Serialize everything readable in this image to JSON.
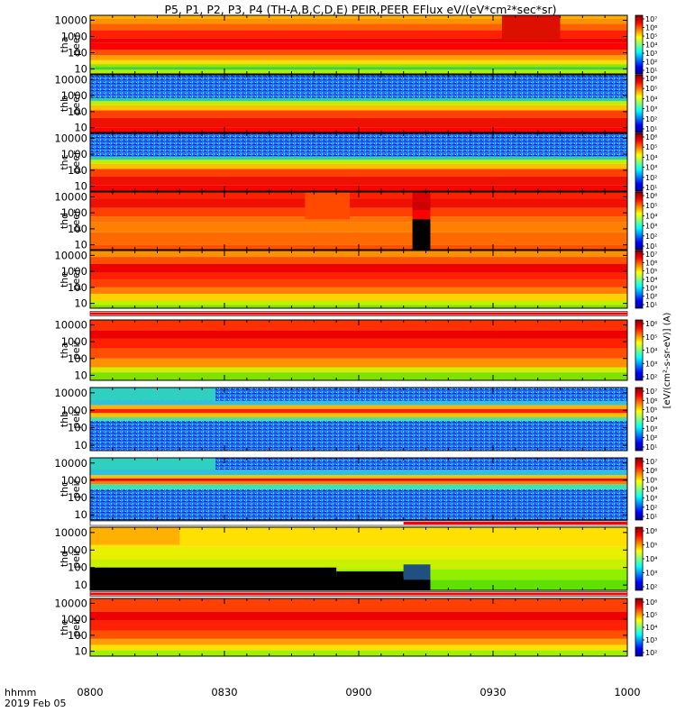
{
  "title": "P5, P1, P2, P3, P4 (TH-A,B,C,D,E) PEIR,PEER EFlux eV/(eV*cm²*sec*sr)",
  "colorbar_label": "[eV/(cm²-s-sr-eV)] (A)",
  "colors": {
    "frame": "#000000",
    "ribbon_red": "#ff0000",
    "ribbon_white": "#ffffff",
    "fill_black": "#000000"
  },
  "chart_data": {
    "type": "heatmap",
    "x_axis": {
      "ticks": [
        "0800",
        "0830",
        "0900",
        "0930",
        "1000"
      ],
      "prefix_lines": [
        "hhmm",
        "2019 Feb 05"
      ],
      "range_minutes": [
        0,
        120
      ]
    },
    "y_ticks": [
      "10",
      "100",
      "1000",
      "10000"
    ],
    "y_range": [
      5,
      20000
    ],
    "y_scale": "log",
    "panels": [
      {
        "id": "tha-peer",
        "label": [
          "tha",
          "peer"
        ],
        "cbar": [
          "10⁷",
          "10⁶",
          "10⁵",
          "10⁴",
          "10³",
          "10²",
          "10¹"
        ],
        "bands": [
          [
            5,
            "#60e000"
          ],
          [
            9,
            "#b0f000"
          ],
          [
            13,
            "#40d040"
          ],
          [
            20,
            "#90e800"
          ],
          [
            35,
            "#ffe000"
          ],
          [
            70,
            "#ffa000"
          ],
          [
            150,
            "#ff5000"
          ],
          [
            400,
            "#ff0000"
          ],
          [
            800,
            "#ee0000"
          ],
          [
            2500,
            "#ff2000"
          ],
          [
            6000,
            "#ff6000"
          ],
          [
            12000,
            "#ff9000"
          ],
          [
            20000,
            "#ffb000"
          ]
        ],
        "events": [
          {
            "x0": 92,
            "x1": 105,
            "y0": 600,
            "y1": 20000,
            "color": "#dd1000"
          }
        ]
      },
      {
        "id": "thb-peer",
        "label": [
          "thb",
          "peer"
        ],
        "cbar": [
          "10⁶",
          "10⁵",
          "10⁴",
          "10³",
          "10²",
          "10¹"
        ],
        "bands": [
          [
            5,
            "#ff3000"
          ],
          [
            10,
            "#ff0000"
          ],
          [
            40,
            "#ee1000"
          ],
          [
            120,
            "#ff4000"
          ],
          [
            250,
            "#ffc000"
          ],
          [
            450,
            "#c0f000"
          ],
          [
            700,
            "#30d0a0"
          ],
          [
            1200,
            "#2080ff",
            "noise"
          ],
          [
            20000,
            "#1060e0",
            "noise"
          ]
        ],
        "events": []
      },
      {
        "id": "thc-peer",
        "label": [
          "thc",
          "peer"
        ],
        "cbar": [
          "10⁶",
          "10⁵",
          "10⁴",
          "10³",
          "10²",
          "10¹"
        ],
        "bands": [
          [
            5,
            "#ff3000"
          ],
          [
            12,
            "#ff0000"
          ],
          [
            40,
            "#ee1000"
          ],
          [
            120,
            "#ff4000"
          ],
          [
            250,
            "#ffc000"
          ],
          [
            450,
            "#c0f000"
          ],
          [
            700,
            "#30d0a0"
          ],
          [
            1200,
            "#2080ff",
            "noise"
          ],
          [
            20000,
            "#1050e0",
            "noise"
          ]
        ],
        "events": []
      },
      {
        "id": "thd-peer",
        "label": [
          "thd",
          "peer"
        ],
        "cbar": [
          "10⁶",
          "10⁵",
          "10⁴",
          "10³",
          "10²",
          "10¹"
        ],
        "bands": [
          [
            5,
            "#ff8000"
          ],
          [
            10,
            "#ff5000"
          ],
          [
            60,
            "#ff6a00"
          ],
          [
            250,
            "#ff8000"
          ],
          [
            600,
            "#ff7000"
          ],
          [
            2000,
            "#ff4000"
          ],
          [
            8000,
            "#ee1000"
          ],
          [
            20000,
            "#ff2000"
          ]
        ],
        "events": [
          {
            "x0": 48,
            "x1": 58,
            "y0": 400,
            "y1": 20000,
            "color": "#ff4a00"
          },
          {
            "x0": 72,
            "x1": 76,
            "y0": 5,
            "y1": 400,
            "color": "#000000"
          },
          {
            "x0": 72,
            "x1": 76,
            "y0": 400,
            "y1": 1500,
            "color": "#ff0000"
          },
          {
            "x0": 72,
            "x1": 76,
            "y0": 1500,
            "y1": 5000,
            "color": "#cc0000"
          },
          {
            "x0": 72,
            "x1": 76,
            "y0": 5000,
            "y1": 20000,
            "color": "#dd0000"
          }
        ]
      },
      {
        "id": "the-peer",
        "label": [
          "the",
          "peer"
        ],
        "cbar": [
          "10⁷",
          "10⁶",
          "10⁵",
          "10⁴",
          "10³",
          "10²",
          "10¹"
        ],
        "bands": [
          [
            5,
            "#00c8ff"
          ],
          [
            8,
            "#80e000"
          ],
          [
            15,
            "#c0f000"
          ],
          [
            40,
            "#ffd000"
          ],
          [
            100,
            "#ff8000"
          ],
          [
            300,
            "#ff4000"
          ],
          [
            800,
            "#ff2000"
          ],
          [
            3000,
            "#ee0000"
          ],
          [
            8000,
            "#ff5000"
          ],
          [
            20000,
            "#ff9000"
          ]
        ],
        "events": []
      },
      {
        "id": "tha-peir",
        "label": [
          "tha",
          "peir"
        ],
        "cbar": [
          "10⁶",
          "10⁵",
          "10⁴",
          "10³",
          "10²"
        ],
        "bands": [
          [
            5,
            "#40d040"
          ],
          [
            15,
            "#80e000"
          ],
          [
            30,
            "#d0f000"
          ],
          [
            100,
            "#ff9000"
          ],
          [
            400,
            "#ff5000"
          ],
          [
            1500,
            "#ff2000"
          ],
          [
            5000,
            "#ee0000"
          ],
          [
            20000,
            "#ff3000"
          ]
        ],
        "events": []
      },
      {
        "id": "thb-peir",
        "label": [
          "thb",
          "peir"
        ],
        "cbar": [
          "10⁷",
          "10⁶",
          "10⁵",
          "10⁴",
          "10³",
          "10²",
          "10¹"
        ],
        "bands": [
          [
            5,
            "#2080ff",
            "noise"
          ],
          [
            250,
            "#2070ff",
            "noise"
          ],
          [
            400,
            "#40e0b0"
          ],
          [
            700,
            "#ffc000"
          ],
          [
            1200,
            "#ff2000"
          ],
          [
            2000,
            "#ffb000"
          ],
          [
            3500,
            "#30c0e0"
          ],
          [
            20000,
            "#2080ff",
            "noise"
          ]
        ],
        "events": [
          {
            "x0": 0,
            "x1": 28,
            "y0": 3500,
            "y1": 20000,
            "color": "#30d0c0"
          }
        ]
      },
      {
        "id": "thc-peir",
        "label": [
          "thc",
          "peir"
        ],
        "cbar": [
          "10⁷",
          "10⁶",
          "10⁵",
          "10⁴",
          "10³",
          "10²",
          "10¹"
        ],
        "bands": [
          [
            5,
            "#2080ff",
            "noise"
          ],
          [
            300,
            "#2080ff",
            "noise"
          ],
          [
            600,
            "#40e0b0"
          ],
          [
            900,
            "#ff8000"
          ],
          [
            1300,
            "#ff0000"
          ],
          [
            2000,
            "#ffc000"
          ],
          [
            4000,
            "#30c0e0"
          ],
          [
            20000,
            "#30b0e0",
            "noise"
          ]
        ],
        "events": [
          {
            "x0": 0,
            "x1": 28,
            "y0": 4000,
            "y1": 20000,
            "color": "#30d0c0"
          }
        ]
      },
      {
        "id": "thd-peir",
        "label": [
          "thd",
          "peir"
        ],
        "cbar": [
          "10⁶",
          "10⁵",
          "10⁴",
          "10³",
          "10²"
        ],
        "bands": [
          [
            5,
            "#40d000"
          ],
          [
            20,
            "#60e000"
          ],
          [
            80,
            "#90f000"
          ],
          [
            300,
            "#c8f000"
          ],
          [
            1500,
            "#e8f000"
          ],
          [
            20000,
            "#ffe000"
          ]
        ],
        "events": [
          {
            "x0": 0,
            "x1": 55,
            "y0": 5,
            "y1": 100,
            "color": "#000000"
          },
          {
            "x0": 0,
            "x1": 76,
            "y0": 5,
            "y1": 30,
            "color": "#000000"
          },
          {
            "x0": 55,
            "x1": 70,
            "y0": 5,
            "y1": 60,
            "color": "#000000"
          },
          {
            "x0": 70,
            "x1": 76,
            "y0": 20,
            "y1": 150,
            "color": "#205080"
          },
          {
            "x0": 0,
            "x1": 20,
            "y0": 2000,
            "y1": 20000,
            "color": "#ffb000"
          }
        ]
      },
      {
        "id": "the-peir",
        "label": [
          "the",
          "peir"
        ],
        "cbar": [
          "10⁶",
          "10⁵",
          "10⁴",
          "10³",
          "10²"
        ],
        "bands": [
          [
            5,
            "#60e000"
          ],
          [
            12,
            "#a0f000"
          ],
          [
            25,
            "#ffe000"
          ],
          [
            60,
            "#ffa000"
          ],
          [
            200,
            "#ff5000"
          ],
          [
            800,
            "#ff2000"
          ],
          [
            3000,
            "#ee0000"
          ],
          [
            20000,
            "#ff4000"
          ]
        ],
        "events": []
      }
    ]
  }
}
